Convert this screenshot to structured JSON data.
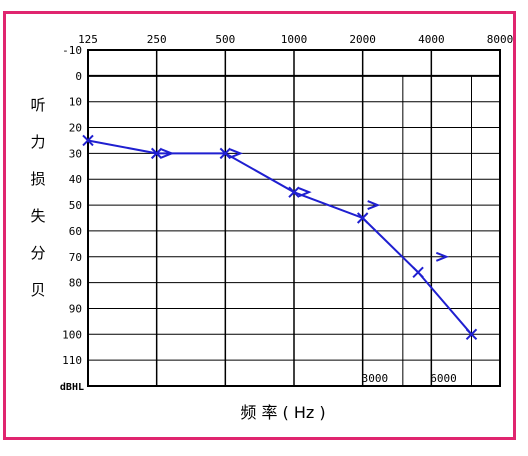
{
  "chart_data": {
    "type": "line",
    "xlabel": "频 率 ( Hz )",
    "ylabel_chars": [
      "听",
      "力",
      "损",
      "失",
      "分",
      "贝"
    ],
    "y_unit_label": "dBHL",
    "x_top_ticks": [
      "125",
      "250",
      "500",
      "1000",
      "2000",
      "4000",
      "8000"
    ],
    "x_bottom_ticks": [
      "3000",
      "6000"
    ],
    "y_ticks": [
      "-10",
      "0",
      "10",
      "20",
      "30",
      "40",
      "50",
      "60",
      "70",
      "80",
      "90",
      "100",
      "110"
    ],
    "ylim": [
      -10,
      120
    ],
    "y_inverted": true,
    "x_scale": "log",
    "series": [
      {
        "marker": "x",
        "color": "#1f1fd0",
        "x": [
          125,
          250,
          500,
          1000,
          2000,
          3500,
          6000
        ],
        "y": [
          25,
          30,
          30,
          45,
          55,
          76,
          100
        ]
      }
    ],
    "bone_markers": {
      "symbol": ">",
      "x": [
        250,
        500,
        1000,
        2000,
        4000
      ],
      "y": [
        30,
        30,
        45,
        50,
        70
      ]
    },
    "grid": true
  }
}
